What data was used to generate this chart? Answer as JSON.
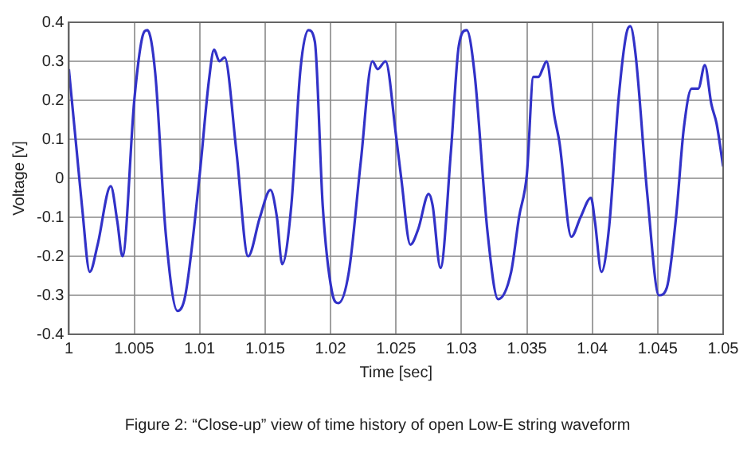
{
  "chart_data": {
    "type": "line",
    "xlabel": "Time [sec]",
    "ylabel": "Voltage [v]",
    "annotations": [
      "Figure 2:  “Close-up” view of time history of open Low-E string waveform"
    ],
    "xlim": [
      1,
      1.05
    ],
    "xticks": [
      1,
      1.005,
      1.01,
      1.015,
      1.02,
      1.025,
      1.03,
      1.035,
      1.04,
      1.045,
      1.05
    ],
    "ylim": [
      -0.4,
      0.4
    ],
    "yticks": [
      -0.4,
      -0.3,
      -0.2,
      -0.1,
      0,
      0.1,
      0.2,
      0.3,
      0.4
    ],
    "grid": true,
    "marker": "none",
    "legend": false,
    "series": [
      {
        "color": "#3232c8",
        "x": [
          1.0,
          1.0006,
          1.001,
          1.0016,
          1.0022,
          1.0032,
          1.0037,
          1.0041,
          1.005,
          1.0056,
          1.006,
          1.0066,
          1.0074,
          1.0083,
          1.0089,
          1.01,
          1.0107,
          1.0111,
          1.0115,
          1.0119,
          1.0128,
          1.0137,
          1.0146,
          1.0154,
          1.0159,
          1.0163,
          1.017,
          1.0177,
          1.0183,
          1.0188,
          1.0194,
          1.0201,
          1.0206,
          1.0214,
          1.0223,
          1.0232,
          1.0236,
          1.0242,
          1.025,
          1.0254,
          1.0261,
          1.0267,
          1.0275,
          1.0278,
          1.0284,
          1.0292,
          1.0298,
          1.0304,
          1.031,
          1.032,
          1.0328,
          1.0338,
          1.0344,
          1.035,
          1.0355,
          1.0359,
          1.0362,
          1.0365,
          1.0371,
          1.0375,
          1.0384,
          1.0391,
          1.0399,
          1.0402,
          1.0407,
          1.0413,
          1.042,
          1.0426,
          1.0429,
          1.0433,
          1.0442,
          1.0451,
          1.0457,
          1.0464,
          1.047,
          1.0476,
          1.0481,
          1.0486,
          1.0491,
          1.0495,
          1.05
        ],
        "values": [
          0.28,
          0.07,
          -0.07,
          -0.24,
          -0.17,
          -0.02,
          -0.11,
          -0.2,
          0.2,
          0.36,
          0.38,
          0.27,
          -0.14,
          -0.34,
          -0.3,
          0.01,
          0.25,
          0.33,
          0.3,
          0.31,
          0.07,
          -0.2,
          -0.1,
          -0.03,
          -0.1,
          -0.22,
          -0.07,
          0.28,
          0.38,
          0.35,
          -0.07,
          -0.29,
          -0.32,
          -0.24,
          0.04,
          0.3,
          0.28,
          0.3,
          0.11,
          0.0,
          -0.17,
          -0.13,
          -0.04,
          -0.07,
          -0.23,
          0.07,
          0.34,
          0.38,
          0.27,
          -0.14,
          -0.31,
          -0.24,
          -0.1,
          0.01,
          0.26,
          0.26,
          0.28,
          0.3,
          0.16,
          0.09,
          -0.15,
          -0.1,
          -0.05,
          -0.11,
          -0.24,
          -0.12,
          0.2,
          0.37,
          0.39,
          0.32,
          -0.04,
          -0.3,
          -0.28,
          -0.1,
          0.13,
          0.23,
          0.23,
          0.29,
          0.19,
          0.14,
          0.03
        ]
      }
    ]
  }
}
